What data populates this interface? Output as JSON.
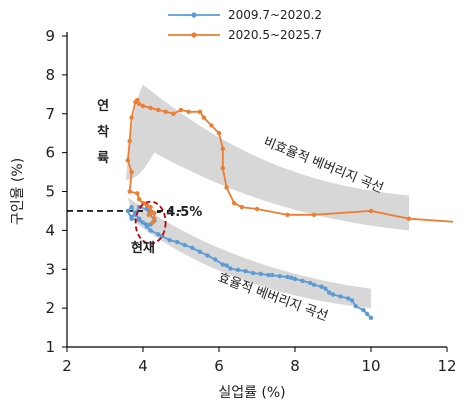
{
  "chart_data": {
    "type": "line",
    "title": "",
    "xlabel": "실업률 (%)",
    "ylabel": "구인율 (%)",
    "xlim": [
      2,
      12
    ],
    "ylim": [
      1,
      9
    ],
    "x_ticks": [
      2,
      4,
      6,
      8,
      10,
      12
    ],
    "y_ticks": [
      1,
      2,
      3,
      4,
      5,
      6,
      7,
      8,
      9
    ],
    "grid": false,
    "legend_position": "top-center",
    "colors": {
      "series1": "#5b9bd5",
      "series2": "#ed7d31",
      "band": "#d0d0d0",
      "reference": "#000000",
      "circle": "#c00000"
    },
    "series": [
      {
        "name": "2009.7~2020.2",
        "color": "#5b9bd5",
        "points": [
          [
            9.9,
            1.85
          ],
          [
            10.0,
            1.75
          ],
          [
            9.8,
            1.95
          ],
          [
            9.6,
            2.05
          ],
          [
            9.5,
            2.2
          ],
          [
            9.4,
            2.25
          ],
          [
            9.2,
            2.3
          ],
          [
            9.0,
            2.35
          ],
          [
            8.9,
            2.4
          ],
          [
            8.8,
            2.5
          ],
          [
            8.7,
            2.55
          ],
          [
            8.5,
            2.6
          ],
          [
            8.4,
            2.65
          ],
          [
            8.2,
            2.7
          ],
          [
            8.0,
            2.75
          ],
          [
            7.9,
            2.78
          ],
          [
            7.8,
            2.8
          ],
          [
            7.6,
            2.82
          ],
          [
            7.4,
            2.85
          ],
          [
            7.3,
            2.85
          ],
          [
            7.1,
            2.88
          ],
          [
            6.9,
            2.9
          ],
          [
            6.7,
            2.95
          ],
          [
            6.5,
            2.98
          ],
          [
            6.3,
            3.02
          ],
          [
            6.2,
            3.1
          ],
          [
            6.1,
            3.12
          ],
          [
            5.9,
            3.25
          ],
          [
            5.7,
            3.35
          ],
          [
            5.5,
            3.45
          ],
          [
            5.3,
            3.55
          ],
          [
            5.1,
            3.62
          ],
          [
            4.9,
            3.7
          ],
          [
            4.7,
            3.75
          ],
          [
            4.5,
            3.85
          ],
          [
            4.4,
            3.9
          ],
          [
            4.2,
            4.0
          ],
          [
            4.1,
            4.1
          ],
          [
            3.9,
            4.3
          ],
          [
            3.8,
            4.4
          ],
          [
            3.7,
            4.6
          ],
          [
            3.6,
            4.5
          ],
          [
            3.7,
            4.3
          ],
          [
            4.0,
            4.2
          ],
          [
            4.2,
            4.15
          ],
          [
            4.3,
            4.25
          ],
          [
            4.1,
            4.55
          ],
          [
            3.9,
            4.6
          ],
          [
            3.8,
            4.45
          ],
          [
            3.7,
            4.35
          ]
        ]
      },
      {
        "name": "2020.5~2025.7",
        "color": "#ed7d31",
        "points": [
          [
            13.2,
            4.15
          ],
          [
            11.0,
            4.3
          ],
          [
            10.0,
            4.5
          ],
          [
            8.5,
            4.4
          ],
          [
            7.8,
            4.4
          ],
          [
            7.0,
            4.55
          ],
          [
            6.6,
            4.6
          ],
          [
            6.4,
            4.7
          ],
          [
            6.2,
            5.1
          ],
          [
            6.1,
            5.6
          ],
          [
            6.1,
            6.1
          ],
          [
            6.0,
            6.5
          ],
          [
            5.8,
            6.7
          ],
          [
            5.6,
            6.9
          ],
          [
            5.5,
            7.05
          ],
          [
            5.2,
            7.05
          ],
          [
            5.0,
            7.1
          ],
          [
            4.8,
            7.0
          ],
          [
            4.6,
            7.05
          ],
          [
            4.4,
            7.1
          ],
          [
            4.2,
            7.15
          ],
          [
            4.0,
            7.2
          ],
          [
            3.9,
            7.25
          ],
          [
            3.85,
            7.35
          ],
          [
            3.8,
            7.3
          ],
          [
            3.7,
            6.9
          ],
          [
            3.65,
            6.3
          ],
          [
            3.6,
            5.8
          ],
          [
            3.7,
            5.5
          ],
          [
            3.65,
            5.0
          ],
          [
            3.85,
            4.95
          ],
          [
            3.9,
            4.8
          ],
          [
            4.0,
            4.7
          ],
          [
            4.1,
            4.65
          ],
          [
            4.2,
            4.6
          ],
          [
            4.2,
            4.5
          ],
          [
            4.15,
            4.4
          ],
          [
            4.3,
            4.45
          ],
          [
            4.3,
            4.3
          ],
          [
            4.25,
            4.2
          ]
        ]
      }
    ],
    "annotations": [
      {
        "text": "4.5%",
        "x": 5.0,
        "y": 4.5
      },
      {
        "text": "현재",
        "x": 4.0,
        "y": 3.5
      },
      {
        "text": "연착륙",
        "x": 2.9,
        "y": 6.4
      },
      {
        "text": "비효율적 베버리지 곡선",
        "x": 8.8,
        "y": 5.6
      },
      {
        "text": "효율적 베버리지 곡선",
        "x": 7.3,
        "y": 2.0
      }
    ],
    "reference_line": {
      "y": 4.5,
      "x_range": [
        2,
        5.0
      ]
    }
  }
}
